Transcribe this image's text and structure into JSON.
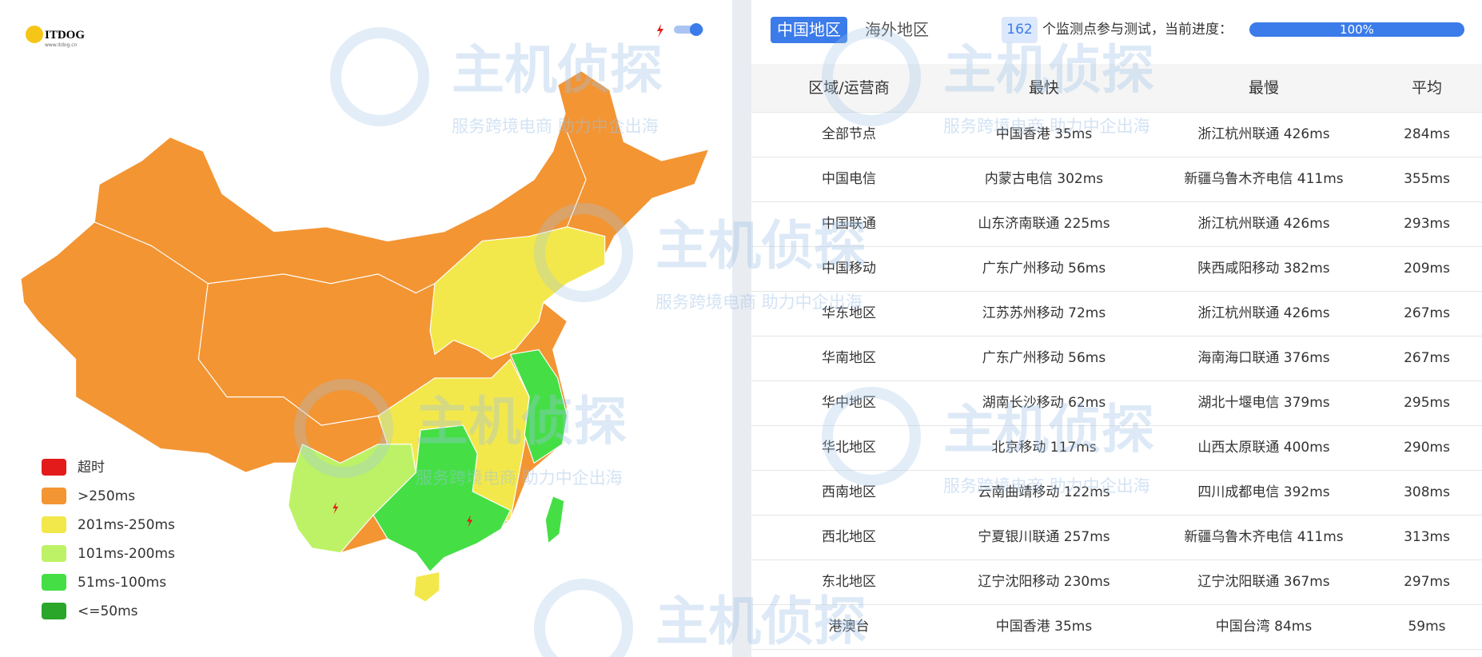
{
  "logo": {
    "text": "ITDOG",
    "url": "www.itdog.cn"
  },
  "watermark": {
    "title": "主机侦探",
    "slogan": "服务跨境电商 助力中企出海"
  },
  "tabs": [
    "中国地区",
    "海外地区"
  ],
  "progress": {
    "count": "162",
    "text": "个监测点参与测试，当前进度：",
    "percent": "100%"
  },
  "legend": [
    {
      "label": "超时",
      "color": "#e31b1b"
    },
    {
      "label": ">250ms",
      "color": "#f39533"
    },
    {
      "label": "201ms-250ms",
      "color": "#f3e84b"
    },
    {
      "label": "101ms-200ms",
      "color": "#bdf266"
    },
    {
      "label": "51ms-100ms",
      "color": "#45df45"
    },
    {
      "label": "<=50ms",
      "color": "#2aa62a"
    }
  ],
  "table": {
    "header": [
      "区域/运营商",
      "最快",
      "最慢",
      "平均"
    ],
    "rows": [
      [
        "全部节点",
        "中国香港 35ms",
        "浙江杭州联通 426ms",
        "284ms"
      ],
      [
        "中国电信",
        "内蒙古电信 302ms",
        "新疆乌鲁木齐电信 411ms",
        "355ms"
      ],
      [
        "中国联通",
        "山东济南联通 225ms",
        "浙江杭州联通 426ms",
        "293ms"
      ],
      [
        "中国移动",
        "广东广州移动 56ms",
        "陕西咸阳移动 382ms",
        "209ms"
      ],
      [
        "华东地区",
        "江苏苏州移动 72ms",
        "浙江杭州联通 426ms",
        "267ms"
      ],
      [
        "华南地区",
        "广东广州移动 56ms",
        "海南海口联通 376ms",
        "267ms"
      ],
      [
        "华中地区",
        "湖南长沙移动 62ms",
        "湖北十堰电信 379ms",
        "295ms"
      ],
      [
        "华北地区",
        "北京移动 117ms",
        "山西太原联通 400ms",
        "290ms"
      ],
      [
        "西南地区",
        "云南曲靖移动 122ms",
        "四川成都电信 392ms",
        "308ms"
      ],
      [
        "西北地区",
        "宁夏银川联通 257ms",
        "新疆乌鲁木齐电信 411ms",
        "313ms"
      ],
      [
        "东北地区",
        "辽宁沈阳移动 230ms",
        "辽宁沈阳联通 367ms",
        "297ms"
      ],
      [
        "港澳台",
        "中国香港 35ms",
        "中国台湾 84ms",
        "59ms"
      ]
    ]
  }
}
